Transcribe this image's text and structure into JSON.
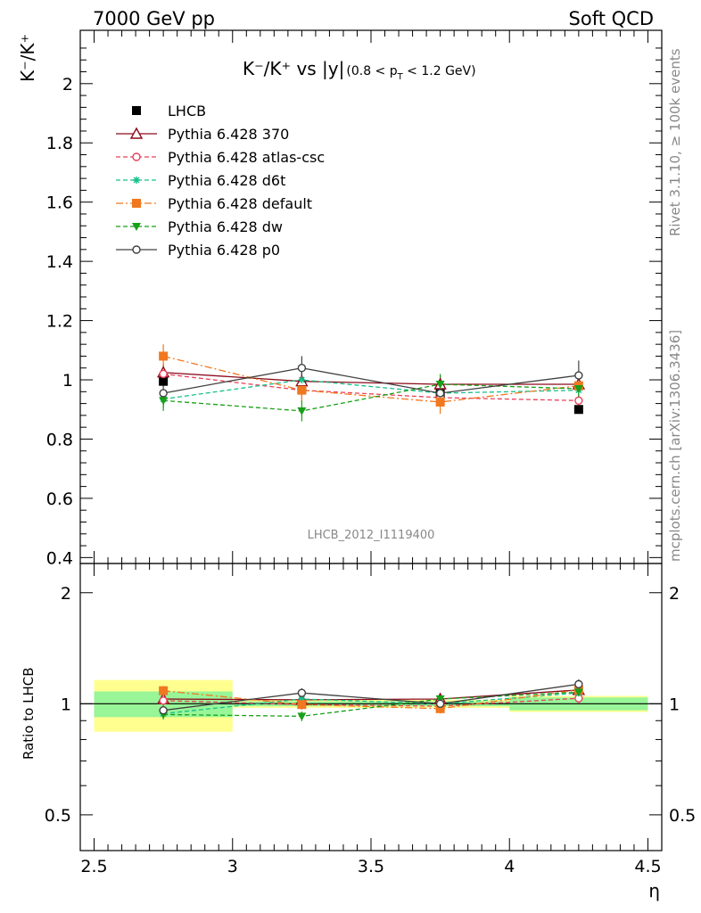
{
  "header": {
    "left": "7000 GeV pp",
    "right": "Soft QCD"
  },
  "side": {
    "rivet": "Rivet 3.1.10, ≥ 100k events",
    "mcplots": "mcplots.cern.ch [arXiv:1306.3436]"
  },
  "plot": {
    "title_main": "K⁻/K⁺ vs |y|",
    "title_sub": "(0.8 < p",
    "title_sub_T": "T",
    "title_sub_end": " < 1.2 GeV)",
    "ylabel": "K⁻/K⁺",
    "analysis": "LHCB_2012_I1119400",
    "ratio_ylabel": "Ratio to LHCB",
    "xlabel": "η"
  },
  "colors": {
    "data": "#000000",
    "p370": "#8b0a1a",
    "atlas": "#e8405a",
    "d6t": "#18c08a",
    "default": "#f07820",
    "dw": "#18a018",
    "p0": "#404040",
    "band_inner": "#98f598",
    "band_outer": "#ffff90"
  },
  "chart_data": [
    {
      "type": "scatter",
      "x_edges": [
        2.5,
        3.0,
        3.5,
        4.0,
        4.5
      ],
      "x": [
        2.75,
        3.25,
        3.75,
        4.25
      ],
      "xlim": [
        2.45,
        4.55
      ],
      "ylim": [
        0.38,
        2.18
      ],
      "xticks": [
        "2.5",
        "3",
        "3.5",
        "4",
        "4.5"
      ],
      "yticks": [
        "0.4",
        "0.6",
        "0.8",
        "1",
        "1.2",
        "1.4",
        "1.6",
        "1.8",
        "2"
      ],
      "legend_position": "top-left",
      "series": [
        {
          "name": "LHCB",
          "key": "data",
          "marker": "square",
          "style": "none",
          "values": [
            0.995,
            0.97,
            0.955,
            0.9
          ],
          "errors": [
            0.012,
            0.012,
            0.012,
            0.012
          ]
        },
        {
          "name": "Pythia 6.428 370",
          "key": "p370",
          "marker": "triangle-open",
          "style": "solid",
          "values": [
            1.025,
            0.995,
            0.985,
            0.985
          ],
          "errors": [
            0.03,
            0.03,
            0.03,
            0.03
          ]
        },
        {
          "name": "Pythia 6.428 atlas-csc",
          "key": "atlas",
          "marker": "circle-open",
          "style": "dashed",
          "values": [
            1.02,
            0.965,
            0.94,
            0.93
          ],
          "errors": [
            0.03,
            0.03,
            0.03,
            0.03
          ]
        },
        {
          "name": "Pythia 6.428 d6t",
          "key": "d6t",
          "marker": "star",
          "style": "dashed",
          "values": [
            0.935,
            1.0,
            0.955,
            0.965
          ],
          "errors": [
            0.03,
            0.03,
            0.03,
            0.03
          ]
        },
        {
          "name": "Pythia 6.428 default",
          "key": "default",
          "marker": "square",
          "style": "dashdot",
          "values": [
            1.08,
            0.965,
            0.925,
            0.98
          ],
          "errors": [
            0.04,
            0.04,
            0.04,
            0.04
          ]
        },
        {
          "name": "Pythia 6.428 dw",
          "key": "dw",
          "marker": "triangle-down",
          "style": "dashed",
          "values": [
            0.93,
            0.895,
            0.985,
            0.97
          ],
          "errors": [
            0.035,
            0.035,
            0.035,
            0.035
          ]
        },
        {
          "name": "Pythia 6.428 p0",
          "key": "p0",
          "marker": "circle-open",
          "style": "solid",
          "values": [
            0.955,
            1.04,
            0.955,
            1.015
          ],
          "errors": [
            0.04,
            0.04,
            0.04,
            0.05
          ]
        }
      ]
    },
    {
      "type": "scatter",
      "role": "ratio",
      "x": [
        2.75,
        3.25,
        3.75,
        4.25
      ],
      "ylabel": "Ratio to LHCB",
      "yscale": "log",
      "ylim": [
        0.4,
        2.4
      ],
      "yticks": [
        "0.5",
        "1",
        "2"
      ],
      "band_inner": [
        [
          0.92,
          1.08
        ],
        [
          0.985,
          1.015
        ],
        [
          0.985,
          1.015
        ],
        [
          0.96,
          1.04
        ]
      ],
      "band_outer": [
        [
          0.84,
          1.16
        ],
        [
          0.975,
          1.025
        ],
        [
          0.975,
          1.025
        ],
        [
          0.95,
          1.05
        ]
      ],
      "series": [
        {
          "key": "p370",
          "values": [
            1.03,
            1.025,
            1.03,
            1.09
          ]
        },
        {
          "key": "atlas",
          "values": [
            1.02,
            0.995,
            0.985,
            1.035
          ]
        },
        {
          "key": "d6t",
          "values": [
            0.94,
            1.03,
            1.0,
            1.07
          ]
        },
        {
          "key": "default",
          "values": [
            1.085,
            0.995,
            0.97,
            1.09
          ]
        },
        {
          "key": "dw",
          "values": [
            0.935,
            0.925,
            1.03,
            1.075
          ]
        },
        {
          "key": "p0",
          "values": [
            0.96,
            1.07,
            1.0,
            1.13
          ]
        }
      ]
    }
  ]
}
